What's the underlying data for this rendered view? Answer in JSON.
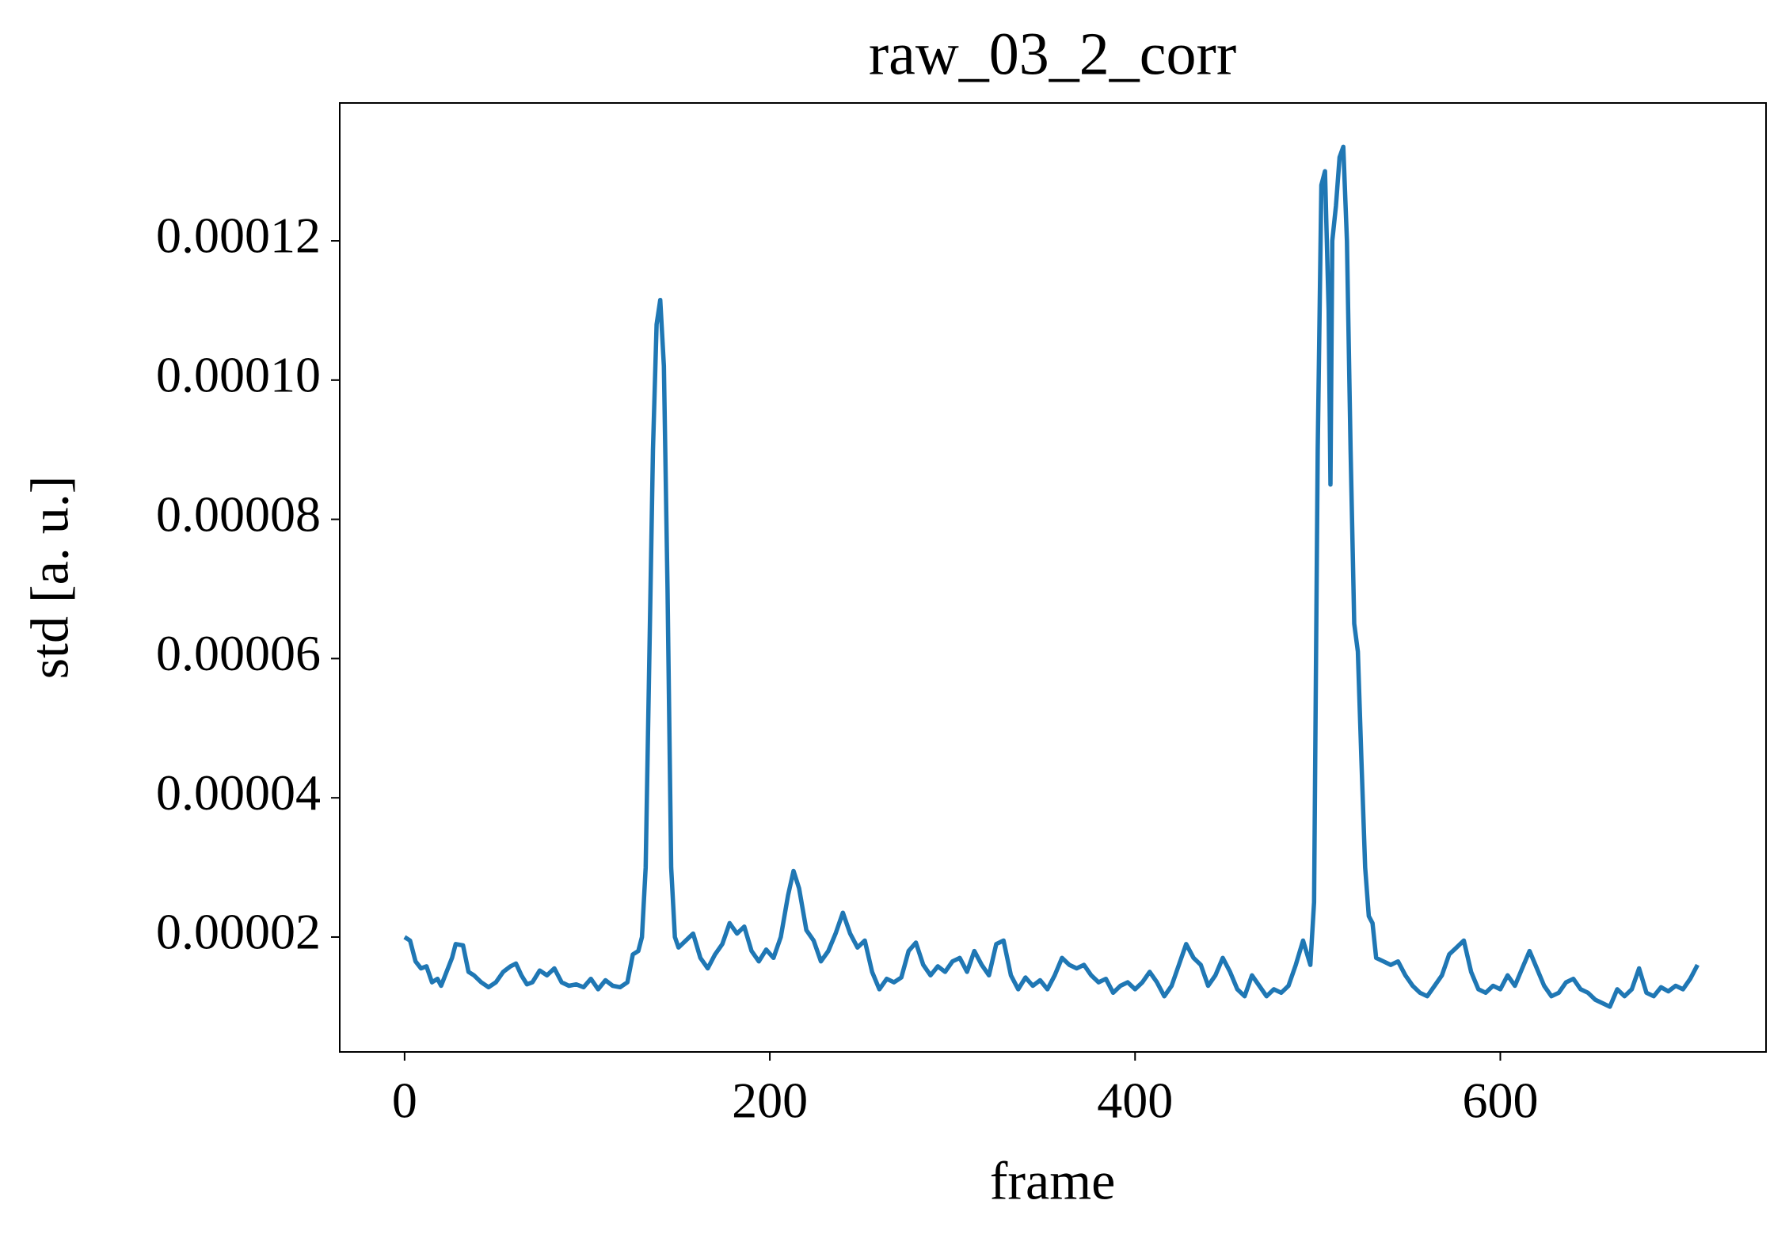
{
  "chart_data": {
    "type": "line",
    "title": "raw_03_2_corr",
    "x_label": "frame",
    "y_label": "std [a. u.]",
    "xlim": [
      -35.5,
      745.5
    ],
    "xticks": [
      0,
      200,
      400,
      600
    ],
    "ylim": [
      3.5e-06,
      0.0001398
    ],
    "yticks": [
      {
        "value": 2e-05,
        "label": "0.00002"
      },
      {
        "value": 4e-05,
        "label": "0.00004"
      },
      {
        "value": 6e-05,
        "label": "0.00006"
      },
      {
        "value": 8e-05,
        "label": "0.00008"
      },
      {
        "value": 0.0001,
        "label": "0.00010"
      },
      {
        "value": 0.00012,
        "label": "0.00012"
      }
    ],
    "x": [
      0,
      3,
      6,
      9,
      12,
      15,
      18,
      20,
      23,
      26,
      28,
      32,
      35,
      38,
      42,
      46,
      50,
      54,
      58,
      61,
      64,
      67,
      70,
      74,
      78,
      82,
      86,
      90,
      94,
      98,
      102,
      106,
      110,
      114,
      118,
      122,
      125,
      128,
      130,
      132,
      134,
      136,
      138,
      140,
      142,
      144,
      146,
      148,
      150,
      154,
      158,
      162,
      166,
      170,
      174,
      178,
      182,
      186,
      190,
      194,
      198,
      202,
      206,
      210,
      213,
      216,
      220,
      224,
      228,
      232,
      236,
      240,
      244,
      248,
      252,
      256,
      260,
      264,
      268,
      272,
      276,
      280,
      284,
      288,
      292,
      296,
      300,
      304,
      308,
      312,
      316,
      320,
      324,
      328,
      332,
      336,
      340,
      344,
      348,
      352,
      356,
      360,
      364,
      368,
      372,
      376,
      380,
      384,
      388,
      392,
      396,
      400,
      404,
      408,
      412,
      416,
      420,
      424,
      428,
      432,
      436,
      440,
      444,
      448,
      452,
      456,
      460,
      464,
      468,
      472,
      476,
      480,
      484,
      488,
      492,
      496,
      498,
      500,
      502,
      504,
      506,
      507,
      508,
      510,
      512,
      514,
      516,
      518,
      520,
      522,
      524,
      526,
      528,
      530,
      532,
      536,
      540,
      544,
      548,
      552,
      556,
      560,
      564,
      568,
      572,
      576,
      580,
      584,
      588,
      592,
      596,
      600,
      604,
      608,
      612,
      616,
      620,
      624,
      628,
      632,
      636,
      640,
      644,
      648,
      652,
      656,
      660,
      664,
      668,
      672,
      676,
      680,
      684,
      688,
      692,
      696,
      700,
      704,
      708
    ],
    "series": [
      {
        "color": "#1f77b4",
        "values": [
          2e-05,
          1.95e-05,
          1.65e-05,
          1.55e-05,
          1.58e-05,
          1.35e-05,
          1.4e-05,
          1.3e-05,
          1.5e-05,
          1.7e-05,
          1.9e-05,
          1.88e-05,
          1.5e-05,
          1.45e-05,
          1.35e-05,
          1.28e-05,
          1.35e-05,
          1.5e-05,
          1.58e-05,
          1.62e-05,
          1.45e-05,
          1.32e-05,
          1.35e-05,
          1.52e-05,
          1.45e-05,
          1.55e-05,
          1.35e-05,
          1.3e-05,
          1.32e-05,
          1.28e-05,
          1.4e-05,
          1.25e-05,
          1.38e-05,
          1.3e-05,
          1.28e-05,
          1.35e-05,
          1.75e-05,
          1.8e-05,
          2e-05,
          3e-05,
          6e-05,
          9e-05,
          0.000108,
          0.0001115,
          0.000102,
          7e-05,
          3e-05,
          2e-05,
          1.85e-05,
          1.95e-05,
          2.05e-05,
          1.7e-05,
          1.55e-05,
          1.75e-05,
          1.9e-05,
          2.2e-05,
          2.05e-05,
          2.15e-05,
          1.8e-05,
          1.65e-05,
          1.82e-05,
          1.7e-05,
          2e-05,
          2.6e-05,
          2.95e-05,
          2.7e-05,
          2.1e-05,
          1.95e-05,
          1.65e-05,
          1.8e-05,
          2.05e-05,
          2.35e-05,
          2.05e-05,
          1.85e-05,
          1.95e-05,
          1.5e-05,
          1.25e-05,
          1.4e-05,
          1.35e-05,
          1.42e-05,
          1.8e-05,
          1.92e-05,
          1.6e-05,
          1.45e-05,
          1.58e-05,
          1.5e-05,
          1.65e-05,
          1.7e-05,
          1.5e-05,
          1.8e-05,
          1.6e-05,
          1.45e-05,
          1.9e-05,
          1.95e-05,
          1.45e-05,
          1.25e-05,
          1.42e-05,
          1.3e-05,
          1.38e-05,
          1.25e-05,
          1.45e-05,
          1.7e-05,
          1.6e-05,
          1.55e-05,
          1.6e-05,
          1.45e-05,
          1.35e-05,
          1.4e-05,
          1.2e-05,
          1.3e-05,
          1.35e-05,
          1.25e-05,
          1.35e-05,
          1.5e-05,
          1.35e-05,
          1.15e-05,
          1.3e-05,
          1.6e-05,
          1.9e-05,
          1.7e-05,
          1.6e-05,
          1.3e-05,
          1.45e-05,
          1.7e-05,
          1.5e-05,
          1.25e-05,
          1.15e-05,
          1.45e-05,
          1.3e-05,
          1.15e-05,
          1.25e-05,
          1.2e-05,
          1.3e-05,
          1.6e-05,
          1.95e-05,
          1.6e-05,
          2.5e-05,
          9e-05,
          0.000128,
          0.00013,
          0.00011,
          8.5e-05,
          0.00012,
          0.000125,
          0.000132,
          0.0001335,
          0.00012,
          9e-05,
          6.5e-05,
          6.1e-05,
          4.5e-05,
          3e-05,
          2.3e-05,
          2.2e-05,
          1.7e-05,
          1.65e-05,
          1.6e-05,
          1.65e-05,
          1.45e-05,
          1.3e-05,
          1.2e-05,
          1.15e-05,
          1.3e-05,
          1.45e-05,
          1.75e-05,
          1.85e-05,
          1.95e-05,
          1.5e-05,
          1.25e-05,
          1.2e-05,
          1.3e-05,
          1.25e-05,
          1.45e-05,
          1.3e-05,
          1.55e-05,
          1.8e-05,
          1.55e-05,
          1.3e-05,
          1.15e-05,
          1.2e-05,
          1.35e-05,
          1.4e-05,
          1.25e-05,
          1.2e-05,
          1.1e-05,
          1.05e-05,
          1e-05,
          1.25e-05,
          1.15e-05,
          1.25e-05,
          1.55e-05,
          1.2e-05,
          1.15e-05,
          1.28e-05,
          1.22e-05,
          1.3e-05,
          1.25e-05,
          1.4e-05,
          1.6e-05
        ]
      }
    ]
  }
}
